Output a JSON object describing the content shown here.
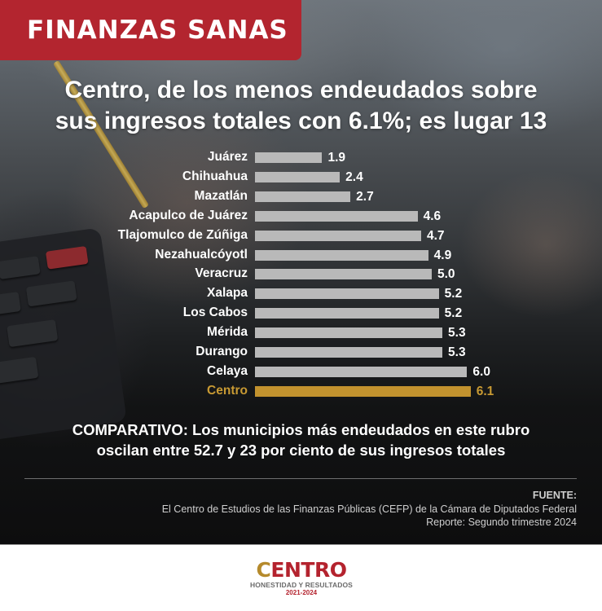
{
  "badge": {
    "label": "FINANZAS SANAS",
    "color": "#b3252f"
  },
  "headline": {
    "line1": "Centro, de los menos endeudados sobre",
    "line2": "sus ingresos totales con 6.1%; es lugar 13"
  },
  "chart_data": {
    "type": "bar",
    "orientation": "horizontal",
    "title": "Centro, de los menos endeudados sobre sus ingresos totales con 6.1%; es lugar 13",
    "xlabel": "",
    "ylabel": "",
    "unit": "% de ingresos totales",
    "grid": false,
    "legend": false,
    "categories": [
      "Juárez",
      "Chihuahua",
      "Mazatlán",
      "Acapulco de Juárez",
      "Tlajomulco de Zúñiga",
      "Nezahualcóyotl",
      "Veracruz",
      "Xalapa",
      "Los Cabos",
      "Mérida",
      "Durango",
      "Celaya",
      "Centro"
    ],
    "values": [
      1.9,
      2.4,
      2.7,
      4.6,
      4.7,
      4.9,
      5.0,
      5.2,
      5.2,
      5.3,
      5.3,
      6.0,
      6.1
    ],
    "labels": [
      "1.9",
      "2.4",
      "2.7",
      "4.6",
      "4.7",
      "4.9",
      "5.0",
      "5.2",
      "5.2",
      "5.3",
      "5.3",
      "6.0",
      "6.1"
    ],
    "highlight": "Centro",
    "colors": {
      "bar": "#b9b9b9",
      "highlight": "#c2922e"
    }
  },
  "comparativo": {
    "line1": "COMPARATIVO: Los municipios más endeudados en este rubro",
    "line2": "oscilan entre 52.7 y 23 por ciento de sus ingresos totales"
  },
  "source": {
    "label": "FUENTE:",
    "line1": "El Centro de Estudios de las Finanzas Públicas (CEFP) de la Cámara de Diputados Federal",
    "line2": "Reporte: Segundo trimestre 2024"
  },
  "logo": {
    "first": "C",
    "middle": "ENTR",
    "last": "O",
    "tagline": "HONESTIDAD Y RESULTADOS",
    "years": "2021-2024"
  }
}
